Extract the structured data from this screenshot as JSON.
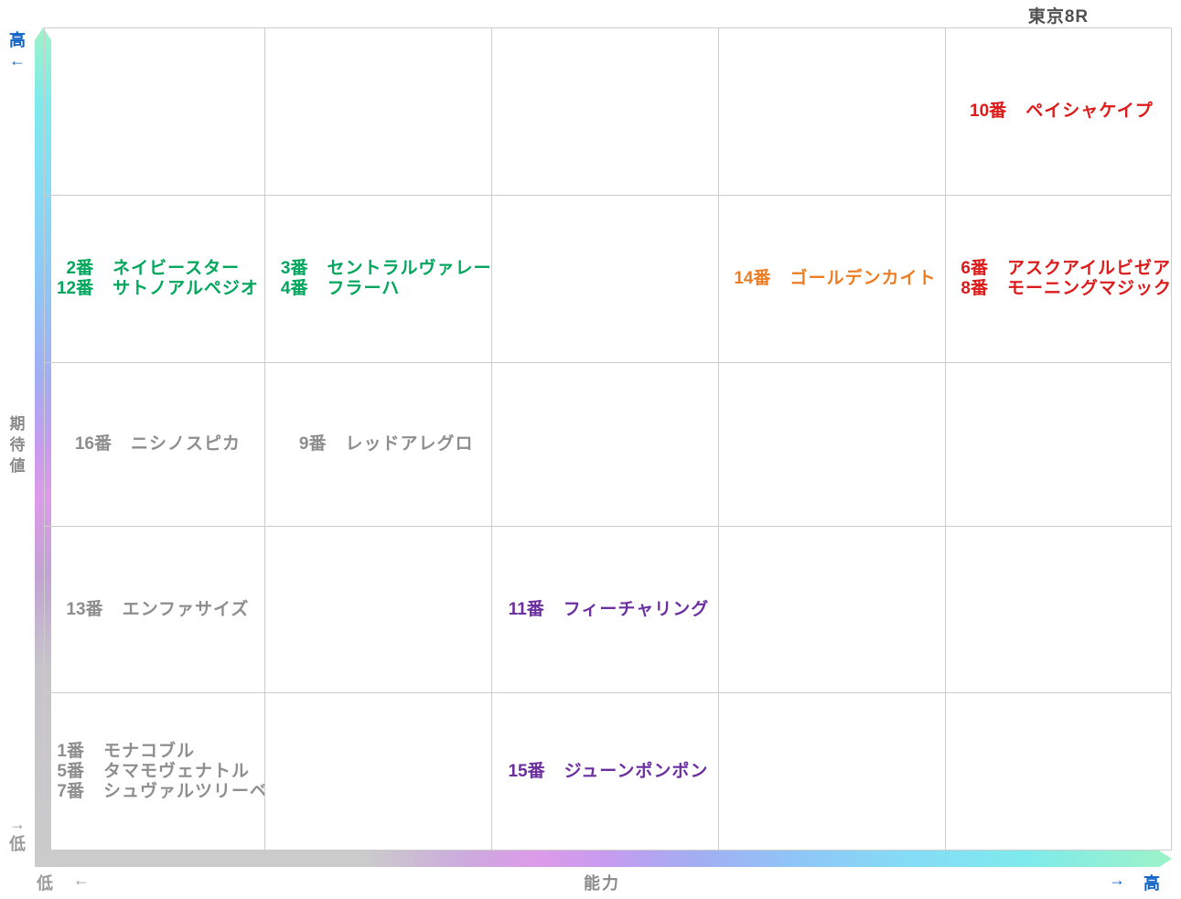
{
  "title": "東京8R",
  "axes": {
    "y": {
      "label": "期待値",
      "high_label": "高",
      "high_arrow": "←",
      "low_label": "低",
      "low_arrow": "→"
    },
    "x": {
      "label": "能力",
      "low_label": "低",
      "low_arrow": "←",
      "high_label": "高",
      "high_arrow": "→"
    }
  },
  "colors": {
    "red": "#dd1a1a",
    "green": "#00a65c",
    "orange": "#ed7d23",
    "purple": "#6b2fa0",
    "gray": "#8e8e8e",
    "axis_blue": "#0f62c8",
    "axis_gray": "#999999",
    "grid_line": "#cccccc",
    "title_gray": "#4f4f4f"
  },
  "grid": {
    "rows": 5,
    "cols": 5
  },
  "chart_data": {
    "type": "scatter",
    "title": "東京8R",
    "xlabel": "能力",
    "ylabel": "期待値",
    "x_range_labels": [
      "低",
      "高"
    ],
    "y_range_labels": [
      "低",
      "高"
    ],
    "grid": "5x5 quadrant grid, gridlines on",
    "legend_position": "none",
    "entries": [
      {
        "number": "10番",
        "name": "ペイシャケイプ",
        "col": 5,
        "row": 1,
        "ability": 5,
        "expectation": 5,
        "color_key": "red"
      },
      {
        "number": "2番",
        "name": "ネイビースター",
        "col": 1,
        "row": 2,
        "ability": 1,
        "expectation": 4,
        "color_key": "green"
      },
      {
        "number": "12番",
        "name": "サトノアルペジオ",
        "col": 1,
        "row": 2,
        "ability": 1,
        "expectation": 4,
        "color_key": "green"
      },
      {
        "number": "3番",
        "name": "セントラルヴァレー",
        "col": 2,
        "row": 2,
        "ability": 2,
        "expectation": 4,
        "color_key": "green"
      },
      {
        "number": "4番",
        "name": "フラーハ",
        "col": 2,
        "row": 2,
        "ability": 2,
        "expectation": 4,
        "color_key": "green"
      },
      {
        "number": "14番",
        "name": "ゴールデンカイト",
        "col": 4,
        "row": 2,
        "ability": 4,
        "expectation": 4,
        "color_key": "orange"
      },
      {
        "number": "6番",
        "name": "アスクアイルビゼア",
        "col": 5,
        "row": 2,
        "ability": 5,
        "expectation": 4,
        "color_key": "red"
      },
      {
        "number": "8番",
        "name": "モーニングマジック",
        "col": 5,
        "row": 2,
        "ability": 5,
        "expectation": 4,
        "color_key": "red"
      },
      {
        "number": "16番",
        "name": "ニシノスピカ",
        "col": 1,
        "row": 3,
        "ability": 1,
        "expectation": 3,
        "color_key": "gray"
      },
      {
        "number": "9番",
        "name": "レッドアレグロ",
        "col": 2,
        "row": 3,
        "ability": 2,
        "expectation": 3,
        "color_key": "gray"
      },
      {
        "number": "13番",
        "name": "エンファサイズ",
        "col": 1,
        "row": 4,
        "ability": 1,
        "expectation": 2,
        "color_key": "gray"
      },
      {
        "number": "11番",
        "name": "フィーチャリング",
        "col": 3,
        "row": 4,
        "ability": 3,
        "expectation": 2,
        "color_key": "purple"
      },
      {
        "number": "1番",
        "name": "モナコブル",
        "col": 1,
        "row": 5,
        "ability": 1,
        "expectation": 1,
        "color_key": "gray"
      },
      {
        "number": "5番",
        "name": "タマモヴェナトル",
        "col": 1,
        "row": 5,
        "ability": 1,
        "expectation": 1,
        "color_key": "gray"
      },
      {
        "number": "7番",
        "name": "シュヴァルツリーベ",
        "col": 1,
        "row": 5,
        "ability": 1,
        "expectation": 1,
        "color_key": "gray"
      },
      {
        "number": "15番",
        "name": "ジューンポンポン",
        "col": 3,
        "row": 5,
        "ability": 3,
        "expectation": 1,
        "color_key": "purple"
      }
    ]
  }
}
